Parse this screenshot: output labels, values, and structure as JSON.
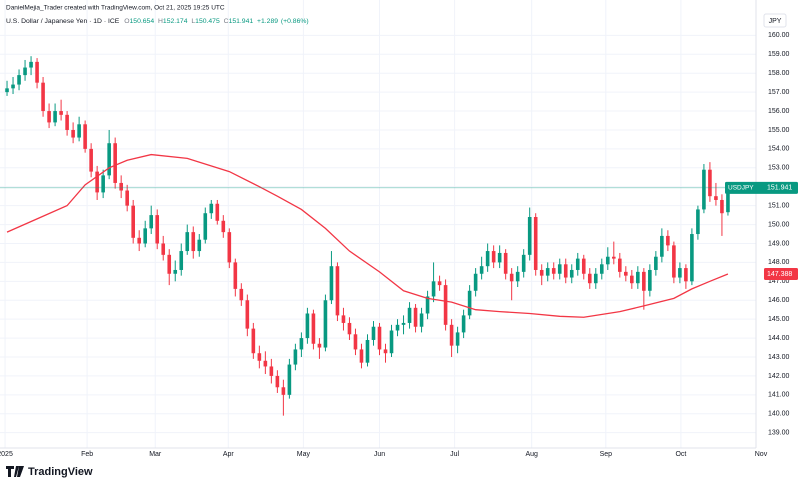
{
  "credit": "DanielMejia_Trader created with TradingView.com, Oct 21, 2025 19:25 UTC",
  "brand": "TradingView",
  "chart_data": {
    "type": "candlestick",
    "title": "U.S. Dollar / Japanese Yen · 1D · ICE",
    "ohlc_labels": [
      "O",
      "H",
      "L",
      "C"
    ],
    "change": {
      "value": 1.289,
      "label": "+1.289"
    },
    "change_pct": {
      "value": 0.86,
      "label": "(+0.86%)"
    },
    "currency": "JPY",
    "symbol": "USDJPY",
    "up_color": "#089981",
    "down_color": "#f23645",
    "candles": [
      [
        157.0,
        157.6,
        156.8,
        157.2
      ],
      [
        157.2,
        157.8,
        156.9,
        157.4
      ],
      [
        157.4,
        158.2,
        157.1,
        157.9
      ],
      [
        157.9,
        158.7,
        157.6,
        158.3
      ],
      [
        158.3,
        158.9,
        157.9,
        158.6
      ],
      [
        158.6,
        158.8,
        157.2,
        157.5
      ],
      [
        157.5,
        157.8,
        155.7,
        156.0
      ],
      [
        156.0,
        156.4,
        155.1,
        155.4
      ],
      [
        155.4,
        156.4,
        155.2,
        156.0
      ],
      [
        156.0,
        156.6,
        155.5,
        155.8
      ],
      [
        155.8,
        156.0,
        154.7,
        155.0
      ],
      [
        155.0,
        155.4,
        154.3,
        154.6
      ],
      [
        154.6,
        155.7,
        154.4,
        155.3
      ],
      [
        155.3,
        155.5,
        153.8,
        154.0
      ],
      [
        154.0,
        154.3,
        152.5,
        152.8
      ],
      [
        152.8,
        153.1,
        151.3,
        151.7
      ],
      [
        151.7,
        152.9,
        151.4,
        152.6
      ],
      [
        152.6,
        155.0,
        152.4,
        154.3
      ],
      [
        154.3,
        154.6,
        151.9,
        152.2
      ],
      [
        152.2,
        152.6,
        151.4,
        151.8
      ],
      [
        151.8,
        152.1,
        150.7,
        151.0
      ],
      [
        151.0,
        151.3,
        149.0,
        149.3
      ],
      [
        149.3,
        149.7,
        148.6,
        149.0
      ],
      [
        149.0,
        150.2,
        148.8,
        149.8
      ],
      [
        149.8,
        151.0,
        149.5,
        150.5
      ],
      [
        150.5,
        150.8,
        148.7,
        149.0
      ],
      [
        149.0,
        149.4,
        148.1,
        148.4
      ],
      [
        148.4,
        148.7,
        146.8,
        147.4
      ],
      [
        147.4,
        148.1,
        147.0,
        147.6
      ],
      [
        147.6,
        149.0,
        147.3,
        148.6
      ],
      [
        148.6,
        150.0,
        148.4,
        149.6
      ],
      [
        149.6,
        149.9,
        148.2,
        148.6
      ],
      [
        148.6,
        149.5,
        148.3,
        149.2
      ],
      [
        149.2,
        150.9,
        149.0,
        150.6
      ],
      [
        150.6,
        151.3,
        150.3,
        151.1
      ],
      [
        151.1,
        151.3,
        150.0,
        150.2
      ],
      [
        150.2,
        150.5,
        149.3,
        149.6
      ],
      [
        149.6,
        149.8,
        147.7,
        148.0
      ],
      [
        148.0,
        148.2,
        146.2,
        146.6
      ],
      [
        146.6,
        146.9,
        145.7,
        146.0
      ],
      [
        146.0,
        146.3,
        144.1,
        144.5
      ],
      [
        144.5,
        144.8,
        142.9,
        143.2
      ],
      [
        143.2,
        143.6,
        142.4,
        142.8
      ],
      [
        142.8,
        143.3,
        142.1,
        142.5
      ],
      [
        142.5,
        142.9,
        141.6,
        142.0
      ],
      [
        142.0,
        142.3,
        141.1,
        141.4
      ],
      [
        141.4,
        141.8,
        139.9,
        141.0
      ],
      [
        141.0,
        142.9,
        140.8,
        142.6
      ],
      [
        142.6,
        143.7,
        142.3,
        143.4
      ],
      [
        143.4,
        144.3,
        143.0,
        144.0
      ],
      [
        144.0,
        145.6,
        143.7,
        145.3
      ],
      [
        145.3,
        145.5,
        143.4,
        143.7
      ],
      [
        143.7,
        144.0,
        142.9,
        143.5
      ],
      [
        143.5,
        146.3,
        143.3,
        146.0
      ],
      [
        146.0,
        148.6,
        145.8,
        147.8
      ],
      [
        147.8,
        148.0,
        144.9,
        145.2
      ],
      [
        145.2,
        145.6,
        144.4,
        144.8
      ],
      [
        144.8,
        145.1,
        143.9,
        144.2
      ],
      [
        144.2,
        144.5,
        143.1,
        143.4
      ],
      [
        143.4,
        143.7,
        142.4,
        142.7
      ],
      [
        142.7,
        144.2,
        142.5,
        143.9
      ],
      [
        143.9,
        144.9,
        143.6,
        144.6
      ],
      [
        144.6,
        144.8,
        143.1,
        143.4
      ],
      [
        143.4,
        143.7,
        142.7,
        143.2
      ],
      [
        143.2,
        144.7,
        143.0,
        144.4
      ],
      [
        144.4,
        145.0,
        144.1,
        144.7
      ],
      [
        144.7,
        145.2,
        144.2,
        144.8
      ],
      [
        144.8,
        145.9,
        144.5,
        145.6
      ],
      [
        145.6,
        145.8,
        144.3,
        144.6
      ],
      [
        144.6,
        145.6,
        144.3,
        145.3
      ],
      [
        145.3,
        146.5,
        145.0,
        146.2
      ],
      [
        146.2,
        148.0,
        145.9,
        147.0
      ],
      [
        147.0,
        147.3,
        146.5,
        146.8
      ],
      [
        146.8,
        147.1,
        144.4,
        144.7
      ],
      [
        144.7,
        145.0,
        143.0,
        143.6
      ],
      [
        143.6,
        144.6,
        143.2,
        144.3
      ],
      [
        144.3,
        145.5,
        144.0,
        145.2
      ],
      [
        145.2,
        146.8,
        145.0,
        146.5
      ],
      [
        146.5,
        147.7,
        146.2,
        147.4
      ],
      [
        147.4,
        148.3,
        147.1,
        147.8
      ],
      [
        147.8,
        149.0,
        147.5,
        148.6
      ],
      [
        148.6,
        148.9,
        147.7,
        148.0
      ],
      [
        148.0,
        148.9,
        147.7,
        148.5
      ],
      [
        148.5,
        148.7,
        147.1,
        147.4
      ],
      [
        147.4,
        147.7,
        146.0,
        147.0
      ],
      [
        147.0,
        147.8,
        146.7,
        147.5
      ],
      [
        147.5,
        148.7,
        147.2,
        148.4
      ],
      [
        148.4,
        150.9,
        148.1,
        150.4
      ],
      [
        150.4,
        150.6,
        147.3,
        147.6
      ],
      [
        147.6,
        147.9,
        146.8,
        147.3
      ],
      [
        147.3,
        148.0,
        147.0,
        147.7
      ],
      [
        147.7,
        148.0,
        147.1,
        147.4
      ],
      [
        147.4,
        148.2,
        147.1,
        147.9
      ],
      [
        147.9,
        148.2,
        146.9,
        147.2
      ],
      [
        147.2,
        147.9,
        146.9,
        147.6
      ],
      [
        147.6,
        148.5,
        147.3,
        148.2
      ],
      [
        148.2,
        148.4,
        147.1,
        147.4
      ],
      [
        147.4,
        147.7,
        146.6,
        146.9
      ],
      [
        146.9,
        147.7,
        146.6,
        147.4
      ],
      [
        147.4,
        148.2,
        147.1,
        147.9
      ],
      [
        147.9,
        148.8,
        147.6,
        148.3
      ],
      [
        148.3,
        149.1,
        147.9,
        148.2
      ],
      [
        148.2,
        148.5,
        147.2,
        147.5
      ],
      [
        147.5,
        147.8,
        147.0,
        147.3
      ],
      [
        147.3,
        147.6,
        146.6,
        146.9
      ],
      [
        146.9,
        147.8,
        146.6,
        147.5
      ],
      [
        147.5,
        147.7,
        145.5,
        146.5
      ],
      [
        146.5,
        147.9,
        146.2,
        147.6
      ],
      [
        147.6,
        148.6,
        147.3,
        148.3
      ],
      [
        148.3,
        149.8,
        148.0,
        149.4
      ],
      [
        149.4,
        149.7,
        148.6,
        148.9
      ],
      [
        148.9,
        149.1,
        146.9,
        147.2
      ],
      [
        147.2,
        148.0,
        146.9,
        147.7
      ],
      [
        147.7,
        147.9,
        146.6,
        147.0
      ],
      [
        147.0,
        149.8,
        146.8,
        149.5
      ],
      [
        149.5,
        151.0,
        149.2,
        150.8
      ],
      [
        150.8,
        153.2,
        150.6,
        152.9
      ],
      [
        152.9,
        153.3,
        151.2,
        151.5
      ],
      [
        151.5,
        152.2,
        151.0,
        151.3
      ],
      [
        151.3,
        151.6,
        149.4,
        150.6
      ],
      [
        150.654,
        152.174,
        150.475,
        151.941
      ]
    ],
    "ma": {
      "color": "#f23645",
      "x": [
        0,
        5,
        10,
        13,
        17,
        20,
        24,
        30,
        37,
        42,
        45,
        49,
        53,
        57,
        62,
        66,
        70,
        74,
        78,
        82,
        87,
        92,
        96,
        102,
        106,
        111,
        114,
        117,
        120
      ],
      "values": [
        149.6,
        150.3,
        151.0,
        152.1,
        153.0,
        153.4,
        153.7,
        153.5,
        152.8,
        152.0,
        151.5,
        150.8,
        149.8,
        148.6,
        147.5,
        146.5,
        146.1,
        145.9,
        145.5,
        145.4,
        145.3,
        145.15,
        145.1,
        145.4,
        145.7,
        146.1,
        146.6,
        147.0,
        147.388
      ]
    },
    "xlim": [
      -1.17,
      124.67
    ],
    "xticks": [
      {
        "value": -0.33,
        "label": "2025"
      },
      {
        "value": 13.33,
        "label": "Feb"
      },
      {
        "value": 24.67,
        "label": "Mar"
      },
      {
        "value": 36.83,
        "label": "Apr"
      },
      {
        "value": 49.33,
        "label": "May"
      },
      {
        "value": 62,
        "label": "Jun"
      },
      {
        "value": 74.5,
        "label": "Jul"
      },
      {
        "value": 87.33,
        "label": "Aug"
      },
      {
        "value": 99.67,
        "label": "Sep"
      },
      {
        "value": 112.17,
        "label": "Oct"
      },
      {
        "value": 125.5,
        "label": "Nov"
      }
    ],
    "ylim": [
      138.19,
      161.87
    ],
    "yticks": [
      {
        "value": 139,
        "label": "139.00"
      },
      {
        "value": 140,
        "label": "140.00"
      },
      {
        "value": 141,
        "label": "141.00"
      },
      {
        "value": 142,
        "label": "142.00"
      },
      {
        "value": 143,
        "label": "143.00"
      },
      {
        "value": 144,
        "label": "144.00"
      },
      {
        "value": 145,
        "label": "145.00"
      },
      {
        "value": 146,
        "label": "146.00"
      },
      {
        "value": 147,
        "label": "147.00"
      },
      {
        "value": 148,
        "label": "148.00"
      },
      {
        "value": 149,
        "label": "149.00"
      },
      {
        "value": 150,
        "label": "150.00"
      },
      {
        "value": 151,
        "label": "151.00"
      },
      {
        "value": 152,
        "label": "152.00"
      },
      {
        "value": 153,
        "label": "153.00"
      },
      {
        "value": 154,
        "label": "154.00"
      },
      {
        "value": 155,
        "label": "155.00"
      },
      {
        "value": 156,
        "label": "156.00"
      },
      {
        "value": 157,
        "label": "157.00"
      },
      {
        "value": 158,
        "label": "158.00"
      },
      {
        "value": 159,
        "label": "159.00"
      },
      {
        "value": 160,
        "label": "160.00"
      }
    ],
    "grid": true
  }
}
